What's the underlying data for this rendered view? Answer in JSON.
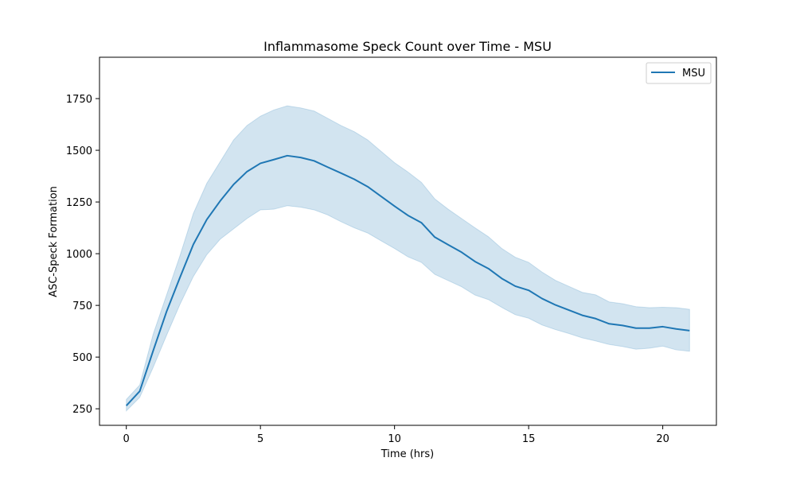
{
  "chart_data": {
    "type": "area",
    "title": "Inflammasome Speck Count over Time - MSU",
    "xlabel": "Time (hrs)",
    "ylabel": "ASC-Speck Formation",
    "xlim": [
      -1,
      22
    ],
    "ylim": [
      170,
      1950
    ],
    "xticks": [
      0,
      5,
      10,
      15,
      20
    ],
    "yticks": [
      250,
      500,
      750,
      1000,
      1250,
      1500,
      1750
    ],
    "grid": false,
    "legend_position": "top-right",
    "series": [
      {
        "name": "MSU",
        "color": "#1f77b4",
        "band_color": "#1f77b4",
        "x": [
          0,
          0.5,
          1,
          1.5,
          2,
          2.5,
          3,
          3.5,
          4,
          4.5,
          5,
          5.5,
          6,
          6.5,
          7,
          7.5,
          8,
          8.5,
          9,
          9.5,
          10,
          10.5,
          11,
          11.5,
          12,
          12.5,
          13,
          13.5,
          14,
          14.5,
          15,
          15.5,
          16,
          16.5,
          17,
          17.5,
          18,
          18.5,
          19,
          19.5,
          20,
          20.5,
          21
        ],
        "y": [
          265,
          335,
          530,
          720,
          885,
          1045,
          1165,
          1255,
          1335,
          1397,
          1437,
          1455,
          1474,
          1465,
          1449,
          1419,
          1390,
          1360,
          1324,
          1277,
          1230,
          1185,
          1150,
          1080,
          1043,
          1007,
          962,
          928,
          880,
          843,
          823,
          783,
          752,
          727,
          702,
          686,
          661,
          653,
          640,
          640,
          647,
          636,
          628
        ],
        "upper": [
          295,
          365,
          610,
          800,
          990,
          1195,
          1340,
          1445,
          1550,
          1620,
          1665,
          1695,
          1715,
          1705,
          1690,
          1655,
          1620,
          1590,
          1550,
          1495,
          1440,
          1395,
          1345,
          1265,
          1215,
          1170,
          1125,
          1082,
          1025,
          983,
          958,
          911,
          871,
          842,
          813,
          801,
          767,
          758,
          744,
          739,
          741,
          739,
          731
        ],
        "lower": [
          240,
          305,
          450,
          605,
          755,
          890,
          995,
          1070,
          1120,
          1170,
          1212,
          1215,
          1232,
          1225,
          1212,
          1188,
          1155,
          1125,
          1100,
          1062,
          1025,
          985,
          958,
          900,
          870,
          840,
          800,
          778,
          740,
          705,
          688,
          655,
          633,
          614,
          593,
          578,
          561,
          551,
          538,
          543,
          553,
          535,
          528
        ]
      }
    ]
  }
}
